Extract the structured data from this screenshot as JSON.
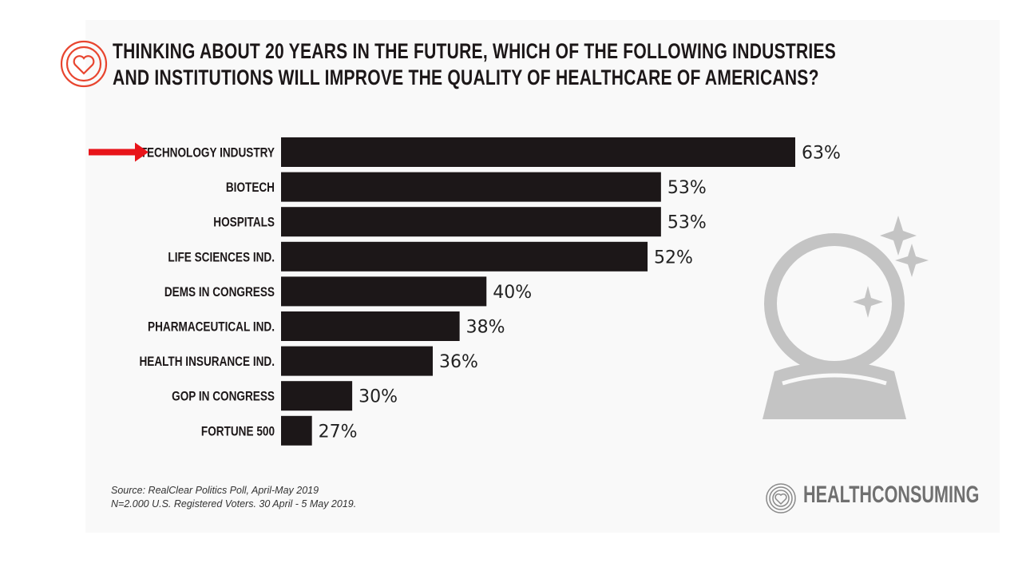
{
  "title_lines": [
    "THINKING ABOUT 20 YEARS IN THE FUTURE, WHICH OF THE FOLLOWING INDUSTRIES",
    "AND INSTITUTIONS WILL IMPROVE THE QUALITY OF HEALTHCARE OF AMERICANS?"
  ],
  "source_lines": [
    "Source: RealClear Politics Poll, April-May 2019",
    "N=2.000 U.S. Registered Voters. 30 April - 5 May 2019."
  ],
  "brand": "HEALTHCONSUMING",
  "colors": {
    "bar": "#1c1718",
    "accent": "#e8452f",
    "arrow": "#e8141a",
    "decor": "#c4c4c4"
  },
  "chart_data": {
    "type": "bar",
    "orientation": "horizontal",
    "title": "THINKING ABOUT 20 YEARS IN THE FUTURE, WHICH OF THE FOLLOWING INDUSTRIES AND INSTITUTIONS WILL IMPROVE THE QUALITY OF HEALTHCARE OF AMERICANS?",
    "categories": [
      "TECHNOLOGY INDUSTRY",
      "BIOTECH",
      "HOSPITALS",
      "LIFE SCIENCES IND.",
      "DEMS IN CONGRESS",
      "PHARMACEUTICAL IND.",
      "HEALTH INSURANCE IND.",
      "GOP IN CONGRESS",
      "FORTUNE 500"
    ],
    "values": [
      63,
      53,
      53,
      52,
      40,
      38,
      36,
      30,
      27
    ],
    "value_labels": [
      "63%",
      "53%",
      "53%",
      "52%",
      "40%",
      "38%",
      "36%",
      "30%",
      "27%"
    ],
    "highlighted": "TECHNOLOGY INDUSTRY",
    "xlim": [
      24.7,
      63
    ],
    "grid": false,
    "xlabel": "",
    "ylabel": ""
  }
}
